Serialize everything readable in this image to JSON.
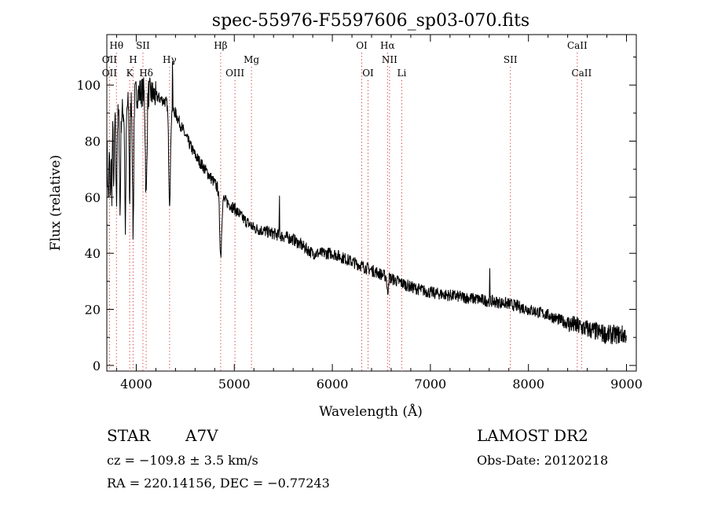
{
  "chart_data": {
    "type": "line",
    "title": "spec-55976-F5597606_sp03-070.fits",
    "xlabel": "Wavelength (Å)",
    "ylabel": "Flux (relative)",
    "xlim": [
      3700,
      9100
    ],
    "ylim": [
      -2,
      118
    ],
    "xticks": [
      4000,
      5000,
      6000,
      7000,
      8000,
      9000
    ],
    "yticks": [
      0,
      20,
      40,
      60,
      80,
      100
    ],
    "grid": false,
    "series": [
      {
        "color": "#000000",
        "continuum": [
          [
            3700,
            78
          ],
          [
            3800,
            88
          ],
          [
            3900,
            92
          ],
          [
            4000,
            97
          ],
          [
            4100,
            98
          ],
          [
            4200,
            96
          ],
          [
            4300,
            94
          ],
          [
            4400,
            90
          ],
          [
            4500,
            82
          ],
          [
            4600,
            75
          ],
          [
            4700,
            70
          ],
          [
            4800,
            65
          ],
          [
            4900,
            59
          ],
          [
            5000,
            56
          ],
          [
            5100,
            52
          ],
          [
            5200,
            49
          ],
          [
            5400,
            47
          ],
          [
            5600,
            45
          ],
          [
            5800,
            40
          ],
          [
            6000,
            40
          ],
          [
            6200,
            37
          ],
          [
            6400,
            34
          ],
          [
            6600,
            31
          ],
          [
            6800,
            28
          ],
          [
            7000,
            26
          ],
          [
            7200,
            25
          ],
          [
            7400,
            24
          ],
          [
            7600,
            23
          ],
          [
            7800,
            22
          ],
          [
            8000,
            20
          ],
          [
            8200,
            18
          ],
          [
            8400,
            15
          ],
          [
            8600,
            13
          ],
          [
            8800,
            11
          ],
          [
            9000,
            11
          ]
        ],
        "features": [
          {
            "x": 3715,
            "depth": 20,
            "width": 6
          },
          {
            "x": 3735,
            "depth": 25,
            "width": 4
          },
          {
            "x": 3750,
            "depth": 22,
            "width": 4
          },
          {
            "x": 3771,
            "depth": 24,
            "width": 4
          },
          {
            "x": 3798,
            "depth": 30,
            "width": 5
          },
          {
            "x": 3835,
            "depth": 36,
            "width": 5
          },
          {
            "x": 3889,
            "depth": 42,
            "width": 6
          },
          {
            "x": 3933,
            "depth": 35,
            "width": 5
          },
          {
            "x": 3968,
            "depth": 48,
            "width": 6
          },
          {
            "x": 4101,
            "depth": 38,
            "width": 8
          },
          {
            "x": 4340,
            "depth": 34,
            "width": 9
          },
          {
            "x": 4370,
            "depth": -22,
            "width": 1.5
          },
          {
            "x": 4861,
            "depth": 22,
            "width": 10
          },
          {
            "x": 5460,
            "depth": -17,
            "width": 1.5
          },
          {
            "x": 6563,
            "depth": 6,
            "width": 6
          },
          {
            "x": 7605,
            "depth": -13,
            "width": 1.5
          }
        ],
        "noise": 2.2,
        "end_noise": 3.5
      }
    ],
    "lines_top": [
      {
        "label": "Hθ",
        "x": 3798
      },
      {
        "label": "SII",
        "x": 4068
      },
      {
        "label": "Hβ",
        "x": 4861
      },
      {
        "label": "OI",
        "x": 6300
      },
      {
        "label": "Hα",
        "x": 6563
      },
      {
        "label": "CaII",
        "x": 8498
      }
    ],
    "lines_mid": [
      {
        "label": "OII",
        "x": 3727
      },
      {
        "label": "H",
        "x": 3968
      },
      {
        "label": "Hγ",
        "x": 4340
      },
      {
        "label": "Mg",
        "x": 5175
      },
      {
        "label": "NII",
        "x": 6583
      },
      {
        "label": "SII",
        "x": 7816
      }
    ],
    "lines_bottom": [
      {
        "label": "OII",
        "x": 3727
      },
      {
        "label": "K",
        "x": 3933
      },
      {
        "label": "Hδ",
        "x": 4101
      },
      {
        "label": "OIII",
        "x": 5007
      },
      {
        "label": "OI",
        "x": 6364
      },
      {
        "label": "Li",
        "x": 6708
      },
      {
        "label": "CaII",
        "x": 8542
      }
    ]
  },
  "info": {
    "object_class": "STAR",
    "subclass": "A7V",
    "survey": "LAMOST DR2",
    "cz": "cz = −109.8 ± 3.5 km/s",
    "obs_date": "Obs-Date: 20120218",
    "coords": "RA = 220.14156, DEC =  −0.77243"
  }
}
